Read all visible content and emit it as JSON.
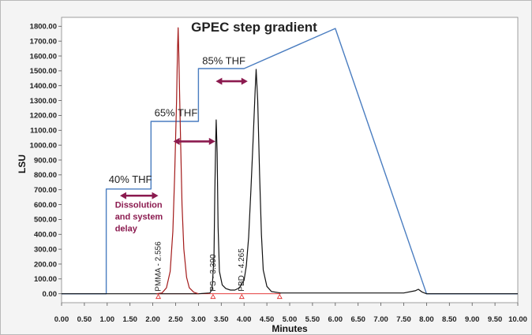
{
  "chart_data": {
    "type": "line",
    "title": "GPEC step gradient",
    "xlabel": "Minutes",
    "ylabel": "LSU",
    "xlim": [
      0,
      10
    ],
    "ylim": [
      -60,
      1860
    ],
    "grid": false,
    "x_ticks": [
      "0.00",
      "0.50",
      "1.00",
      "1.50",
      "2.00",
      "2.50",
      "3.00",
      "3.50",
      "4.00",
      "4.50",
      "5.00",
      "5.50",
      "6.00",
      "6.50",
      "7.00",
      "7.50",
      "8.00",
      "8.50",
      "9.00",
      "9.50",
      "10.00"
    ],
    "y_ticks": [
      "0.00",
      "100.00",
      "200.00",
      "300.00",
      "400.00",
      "500.00",
      "600.00",
      "700.00",
      "800.00",
      "900.00",
      "1000.00",
      "1100.00",
      "1200.00",
      "1300.00",
      "1400.00",
      "1500.00",
      "1600.00",
      "1700.00",
      "1800.00"
    ],
    "gradient_labels": [
      {
        "text": "40% THF",
        "x": 1.0,
        "y": 745
      },
      {
        "text": "65% THF",
        "x": 2.0,
        "y": 1195
      },
      {
        "text": "85% THF",
        "x": 3.05,
        "y": 1545
      }
    ],
    "peak_labels": [
      {
        "text": "PMMA - 2.556",
        "x": 2.17
      },
      {
        "text": "PS - 3.390",
        "x": 3.37
      },
      {
        "text": "PBD - 4.265",
        "x": 4.0
      }
    ],
    "annotation": {
      "lines": [
        "Dissolution",
        "and system",
        "delay"
      ],
      "x": 1.5,
      "y": 580
    },
    "arrows": [
      {
        "x1": 1.28,
        "x2": 2.12,
        "y": 660
      },
      {
        "x1": 2.45,
        "x2": 3.37,
        "y": 1025
      },
      {
        "x1": 3.38,
        "x2": 4.08,
        "y": 1430
      }
    ],
    "colors": {
      "gradient": "#4a7dc0",
      "pmma": "#a31a1a",
      "chromatogram": "#111111",
      "baseline": "#e02020",
      "arrow": "#8b1a4f"
    },
    "series": [
      {
        "key": "gradient",
        "x": [
          0.0,
          0.98,
          0.98,
          1.96,
          1.96,
          3.0,
          3.0,
          4.0,
          6.0,
          8.0,
          10.0
        ],
        "y": [
          0,
          0,
          705,
          705,
          1160,
          1160,
          1515,
          1515,
          1785,
          0,
          0
        ]
      },
      {
        "key": "pmma",
        "x": [
          2.08,
          2.2,
          2.3,
          2.38,
          2.44,
          2.48,
          2.52,
          2.54,
          2.556,
          2.57,
          2.6,
          2.64,
          2.68,
          2.74,
          2.8,
          2.9,
          3.0
        ],
        "y": [
          0,
          5,
          40,
          150,
          420,
          800,
          1300,
          1620,
          1790,
          1620,
          1150,
          600,
          300,
          110,
          40,
          10,
          0
        ]
      },
      {
        "key": "chromatogram",
        "x": [
          0.0,
          2.0,
          3.0,
          3.25,
          3.3,
          3.34,
          3.36,
          3.38,
          3.39,
          3.41,
          3.43,
          3.46,
          3.52,
          3.6,
          3.7,
          3.8,
          3.9,
          4.0,
          4.05,
          4.1,
          4.15,
          4.2,
          4.24,
          4.265,
          4.3,
          4.34,
          4.38,
          4.42,
          4.5,
          4.6,
          4.8,
          7.5,
          7.75,
          7.82,
          7.9,
          8.0,
          10.0
        ],
        "y": [
          0,
          0,
          0,
          5,
          30,
          250,
          700,
          1060,
          1170,
          950,
          450,
          150,
          60,
          35,
          25,
          25,
          40,
          90,
          190,
          380,
          700,
          1050,
          1350,
          1510,
          1300,
          800,
          400,
          160,
          50,
          15,
          5,
          5,
          20,
          30,
          12,
          0,
          0
        ]
      },
      {
        "key": "baseline",
        "x": [
          2.1,
          3.3,
          3.95,
          4.8
        ],
        "y": [
          0,
          0,
          0,
          0
        ]
      }
    ],
    "baseline_markers": [
      2.12,
      3.32,
      3.95,
      4.78
    ]
  }
}
